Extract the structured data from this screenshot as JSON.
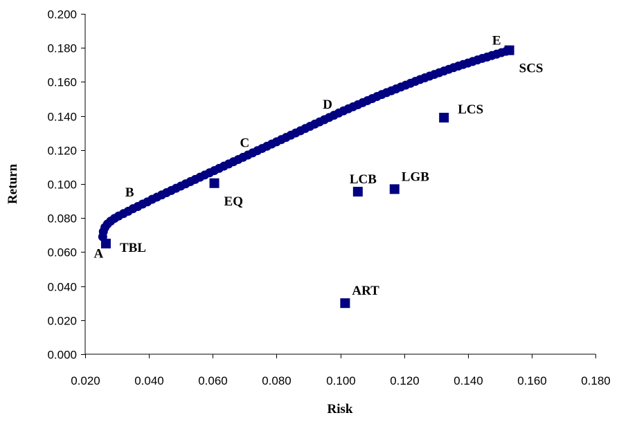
{
  "chart_data": {
    "type": "scatter",
    "xlabel": "Risk",
    "ylabel": "Return",
    "xlim": [
      0.02,
      0.18
    ],
    "ylim": [
      0.0,
      0.2
    ],
    "xticks": [
      "0.020",
      "0.040",
      "0.060",
      "0.080",
      "0.100",
      "0.120",
      "0.140",
      "0.160",
      "0.180"
    ],
    "yticks": [
      "0.000",
      "0.020",
      "0.040",
      "0.060",
      "0.080",
      "0.100",
      "0.120",
      "0.140",
      "0.160",
      "0.180",
      "0.200"
    ],
    "grid": false,
    "legend": "none",
    "frontier": {
      "marker": "circle",
      "color": "#000080",
      "points": [
        [
          0.0255,
          0.069
        ],
        [
          0.0257,
          0.072
        ],
        [
          0.0262,
          0.0745
        ],
        [
          0.027,
          0.0765
        ],
        [
          0.028,
          0.0782
        ],
        [
          0.0292,
          0.0798
        ],
        [
          0.0305,
          0.0812
        ],
        [
          0.032,
          0.0826
        ],
        [
          0.0335,
          0.084
        ],
        [
          0.035,
          0.0855
        ],
        [
          0.0365,
          0.0868
        ],
        [
          0.038,
          0.0882
        ],
        [
          0.0395,
          0.0895
        ],
        [
          0.041,
          0.091
        ],
        [
          0.0425,
          0.0923
        ],
        [
          0.044,
          0.0936
        ],
        [
          0.0455,
          0.0949
        ],
        [
          0.047,
          0.0962
        ],
        [
          0.0485,
          0.0975
        ],
        [
          0.05,
          0.0988
        ],
        [
          0.0515,
          0.1001
        ],
        [
          0.053,
          0.1014
        ],
        [
          0.0545,
          0.1027
        ],
        [
          0.056,
          0.104
        ],
        [
          0.0575,
          0.1053
        ],
        [
          0.059,
          0.1066
        ],
        [
          0.0605,
          0.1079
        ],
        [
          0.062,
          0.1092
        ],
        [
          0.0635,
          0.1105
        ],
        [
          0.065,
          0.1118
        ],
        [
          0.0665,
          0.1131
        ],
        [
          0.068,
          0.1144
        ],
        [
          0.0695,
          0.1157
        ],
        [
          0.071,
          0.117
        ],
        [
          0.0725,
          0.1183
        ],
        [
          0.074,
          0.1196
        ],
        [
          0.0755,
          0.1209
        ],
        [
          0.077,
          0.1222
        ],
        [
          0.0785,
          0.1235
        ],
        [
          0.08,
          0.1248
        ],
        [
          0.0815,
          0.1261
        ],
        [
          0.083,
          0.1274
        ],
        [
          0.0845,
          0.1287
        ],
        [
          0.086,
          0.13
        ],
        [
          0.0875,
          0.1313
        ],
        [
          0.089,
          0.1326
        ],
        [
          0.0905,
          0.1339
        ],
        [
          0.092,
          0.1352
        ],
        [
          0.0935,
          0.1365
        ],
        [
          0.095,
          0.1378
        ],
        [
          0.0965,
          0.1391
        ],
        [
          0.098,
          0.1404
        ],
        [
          0.0995,
          0.1417
        ],
        [
          0.101,
          0.143
        ],
        [
          0.1025,
          0.1442
        ],
        [
          0.104,
          0.1454
        ],
        [
          0.1055,
          0.1466
        ],
        [
          0.107,
          0.1478
        ],
        [
          0.1085,
          0.149
        ],
        [
          0.11,
          0.1502
        ],
        [
          0.1115,
          0.1514
        ],
        [
          0.113,
          0.1526
        ],
        [
          0.1145,
          0.1537
        ],
        [
          0.116,
          0.1548
        ],
        [
          0.1175,
          0.1559
        ],
        [
          0.119,
          0.157
        ],
        [
          0.1205,
          0.1581
        ],
        [
          0.122,
          0.1592
        ],
        [
          0.1235,
          0.1603
        ],
        [
          0.125,
          0.1614
        ],
        [
          0.1265,
          0.1624
        ],
        [
          0.128,
          0.1634
        ],
        [
          0.1295,
          0.1644
        ],
        [
          0.131,
          0.1654
        ],
        [
          0.1325,
          0.1664
        ],
        [
          0.134,
          0.1674
        ],
        [
          0.1355,
          0.1684
        ],
        [
          0.137,
          0.1693
        ],
        [
          0.1385,
          0.1702
        ],
        [
          0.14,
          0.1711
        ],
        [
          0.1415,
          0.172
        ],
        [
          0.143,
          0.1729
        ],
        [
          0.1445,
          0.1738
        ],
        [
          0.146,
          0.1746
        ],
        [
          0.1475,
          0.1755
        ],
        [
          0.149,
          0.1763
        ],
        [
          0.1505,
          0.1772
        ],
        [
          0.152,
          0.178
        ],
        [
          0.153,
          0.1786
        ]
      ]
    },
    "frontier_labels": [
      {
        "text": "A",
        "x": 0.0255,
        "y": 0.069,
        "pos": "below-left"
      },
      {
        "text": "B",
        "x": 0.0375,
        "y": 0.0878,
        "pos": "above-left"
      },
      {
        "text": "C",
        "x": 0.07,
        "y": 0.1161,
        "pos": "above"
      },
      {
        "text": "D",
        "x": 0.096,
        "y": 0.1387,
        "pos": "above"
      },
      {
        "text": "E",
        "x": 0.149,
        "y": 0.1763,
        "pos": "above"
      }
    ],
    "assets": {
      "marker": "square",
      "color": "#000080",
      "points": [
        {
          "label": "TBL",
          "x": 0.0265,
          "y": 0.065,
          "pos": "right-below"
        },
        {
          "label": "EQ",
          "x": 0.0605,
          "y": 0.1005,
          "pos": "below-right"
        },
        {
          "label": "LCB",
          "x": 0.1055,
          "y": 0.0955,
          "pos": "above"
        },
        {
          "label": "LGB",
          "x": 0.117,
          "y": 0.097,
          "pos": "above-right"
        },
        {
          "label": "LCS",
          "x": 0.1325,
          "y": 0.139,
          "pos": "right"
        },
        {
          "label": "SCS",
          "x": 0.153,
          "y": 0.1786,
          "pos": "below-right"
        },
        {
          "label": "ART",
          "x": 0.1015,
          "y": 0.03,
          "pos": "above-right"
        }
      ]
    }
  }
}
